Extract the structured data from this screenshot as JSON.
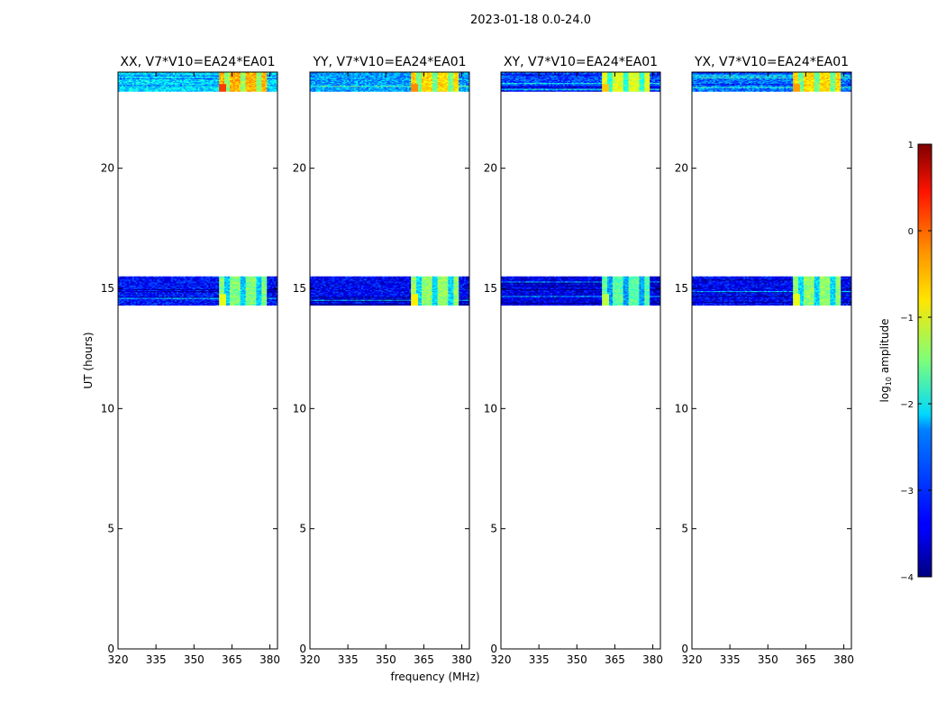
{
  "figure": {
    "suptitle": "2023-01-18 0.0-24.0",
    "xlabel": "frequency (MHz)",
    "ylabel": "UT (hours)"
  },
  "chart_data": {
    "type": "heatmap",
    "xlim": [
      320,
      383
    ],
    "ylim": [
      0,
      24
    ],
    "x_ticks": [
      320,
      335,
      350,
      365,
      380
    ],
    "y_ticks": [
      0,
      5,
      10,
      15,
      20
    ],
    "colormap": "jet",
    "panels": [
      {
        "title": "XX, V7*V10=EA24*EA01",
        "segments": [
          {
            "t_start": 23.2,
            "t_end": 24.0,
            "f_start": 320,
            "f_end": 383,
            "background_log10": -2.3,
            "rfi_log10": -0.5,
            "peak_log10": 0.1
          },
          {
            "t_start": 14.3,
            "t_end": 15.5,
            "f_start": 320,
            "f_end": 383,
            "background_log10": -3.3,
            "rfi_log10": -1.5,
            "peak_log10": -1.0
          }
        ]
      },
      {
        "title": "YY, V7*V10=EA24*EA01",
        "segments": [
          {
            "t_start": 23.2,
            "t_end": 24.0,
            "f_start": 320,
            "f_end": 383,
            "background_log10": -2.6,
            "rfi_log10": -0.7,
            "peak_log10": -0.3
          },
          {
            "t_start": 14.3,
            "t_end": 15.5,
            "f_start": 320,
            "f_end": 383,
            "background_log10": -3.4,
            "rfi_log10": -1.4,
            "peak_log10": -0.8
          }
        ]
      },
      {
        "title": "XY, V7*V10=EA24*EA01",
        "segments": [
          {
            "t_start": 23.2,
            "t_end": 24.0,
            "f_start": 320,
            "f_end": 383,
            "background_log10": -3.0,
            "rfi_log10": -1.0,
            "peak_log10": -0.6
          },
          {
            "t_start": 14.3,
            "t_end": 15.5,
            "f_start": 320,
            "f_end": 383,
            "background_log10": -3.5,
            "rfi_log10": -1.7,
            "peak_log10": -1.2
          }
        ]
      },
      {
        "title": "YX, V7*V10=EA24*EA01",
        "segments": [
          {
            "t_start": 23.2,
            "t_end": 24.0,
            "f_start": 320,
            "f_end": 383,
            "background_log10": -2.8,
            "rfi_log10": -0.7,
            "peak_log10": -0.4
          },
          {
            "t_start": 14.3,
            "t_end": 15.5,
            "f_start": 320,
            "f_end": 383,
            "background_log10": -3.4,
            "rfi_log10": -1.4,
            "peak_log10": -1.0
          }
        ]
      }
    ],
    "rfi_band_mhz": [
      360,
      379
    ],
    "colorbar": {
      "label": "log10 amplitude",
      "min": -4,
      "max": 1,
      "ticks": [
        -4,
        -3,
        -2,
        -1,
        0,
        1
      ],
      "tick_labels": [
        "−4",
        "−3",
        "−2",
        "−1",
        "0",
        "1"
      ]
    }
  }
}
